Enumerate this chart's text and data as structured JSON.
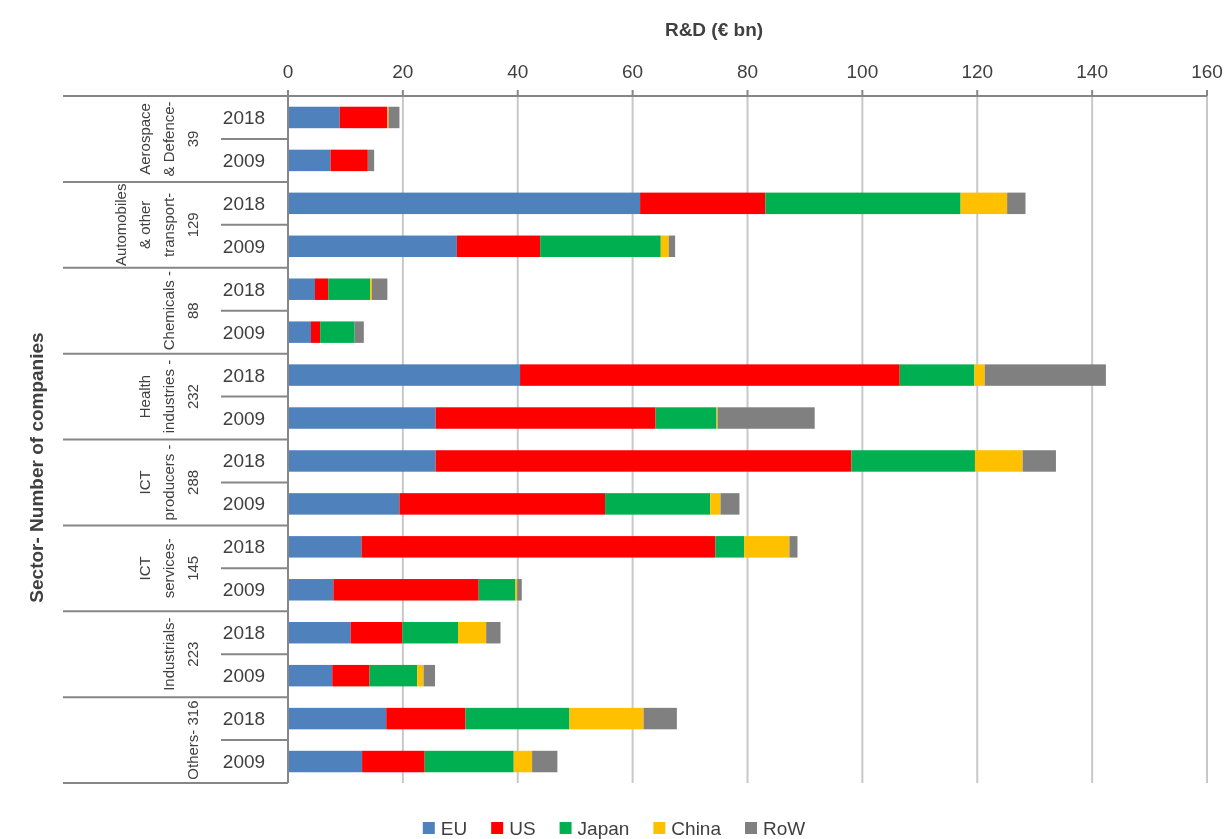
{
  "chart_data": {
    "type": "bar",
    "orientation": "horizontal",
    "stacked": true,
    "xlabel": "R&D (€ bn)",
    "categories": [
      "2018",
      "2009",
      "2018",
      "2009",
      "2018",
      "2009",
      "2018",
      "2009",
      "2018",
      "2009",
      "2018",
      "2009",
      "2018",
      "2009",
      "2018",
      "2009"
    ],
    "annotations": [
      "Sector- Number of companies",
      "Aerospace & Defence- 39",
      "Automobiles & other transport- 129",
      "Chemicals - 88",
      "Health industries - 232",
      "ICT producers - 288",
      "ICT services- 145",
      "Industrials- 223",
      "Others- 316"
    ],
    "series": [
      {
        "name": "EU",
        "color": "#4f81bd",
        "values": [
          9.0,
          7.4,
          61.3,
          29.4,
          4.7,
          4.0,
          40.4,
          25.7,
          25.7,
          19.4,
          12.8,
          7.9,
          10.9,
          7.7,
          17.1,
          12.9
        ]
      },
      {
        "name": "US",
        "color": "#ff0000",
        "values": [
          8.3,
          6.5,
          21.8,
          14.5,
          2.3,
          1.6,
          66.1,
          38.3,
          72.4,
          35.8,
          61.6,
          25.3,
          9.0,
          6.5,
          13.8,
          10.9
        ]
      },
      {
        "name": "Japan",
        "color": "#00b050",
        "values": [
          null,
          null,
          34.0,
          21.0,
          7.3,
          6.0,
          13.0,
          10.6,
          21.5,
          18.3,
          5.0,
          6.4,
          9.7,
          8.3,
          18.1,
          15.5
        ]
      },
      {
        "name": "China",
        "color": "#ffc000",
        "values": [
          0.2,
          null,
          8.1,
          1.4,
          0.3,
          null,
          1.8,
          0.2,
          8.3,
          1.8,
          7.9,
          0.3,
          4.9,
          1.1,
          12.9,
          3.2
        ]
      },
      {
        "name": "RoW",
        "color": "#808080",
        "values": [
          1.9,
          1.1,
          3.2,
          1.1,
          2.7,
          1.6,
          21.1,
          16.9,
          5.8,
          3.3,
          1.4,
          0.8,
          2.5,
          2.0,
          5.8,
          4.4
        ]
      }
    ],
    "xlim": [
      0,
      160
    ],
    "xticks": [
      0,
      20,
      40,
      60,
      80,
      100,
      120,
      140,
      160
    ],
    "grid": "x",
    "legend": "bottom"
  }
}
